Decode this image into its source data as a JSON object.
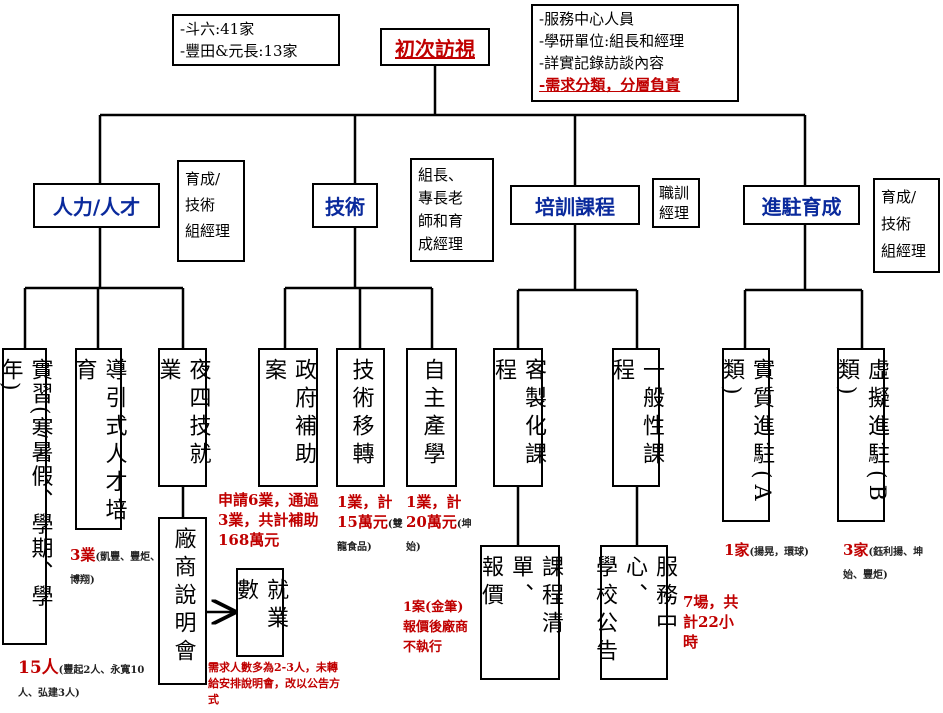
{
  "root": {
    "label": "初次訪視"
  },
  "notes": {
    "sites": [
      "-斗六:41家",
      "-豐田&元長:13家"
    ],
    "principles": [
      "-服務中心人員",
      "-學研單位:組長和經理",
      "-詳實記錄訪談內容",
      "-需求分類，分層負責"
    ]
  },
  "branches": [
    {
      "label": "人力/人才",
      "owner": [
        "育成/",
        "技術",
        "組經理"
      ]
    },
    {
      "label": "技術",
      "owner": [
        "組長、",
        "專長老",
        "師和育",
        "成經理"
      ]
    },
    {
      "label": "培訓課程",
      "owner": [
        "職訓",
        "經理"
      ]
    },
    {
      "label": "進駐育成",
      "owner": [
        "育成/",
        "技術",
        "組經理"
      ]
    }
  ],
  "items": [
    {
      "label": "實習(寒暑假、學期、學年)"
    },
    {
      "label": "導引式人才培育"
    },
    {
      "label": "夜四技就業"
    },
    {
      "label": "政府補助案"
    },
    {
      "label": "技術移轉"
    },
    {
      "label": "自主產學"
    },
    {
      "label": "客製化課程"
    },
    {
      "label": "一般性課程"
    },
    {
      "label": "實質進駐(A類)"
    },
    {
      "label": "虛擬進駐(B類)"
    }
  ],
  "followups": [
    {
      "lines": [
        "廠商說明會"
      ]
    },
    {
      "lines": [
        "就業數"
      ]
    },
    {
      "lines": [
        "課程清單、",
        "報價"
      ]
    },
    {
      "lines": [
        "服務中心、",
        "學校公告"
      ]
    }
  ],
  "results": [
    {
      "main": "15人",
      "detail": "(豐起2人、永寬10人、弘建3人)"
    },
    {
      "main": "3業",
      "detail": "(凱豐、豐炬、博翔)"
    },
    {
      "main": "申請6業，通過3業，共計補助168萬元"
    },
    {
      "main": "1業，計15萬元",
      "detail": "(雙龍食品)"
    },
    {
      "main": "1業，計20萬元",
      "detail": "(坤始)"
    },
    {
      "main": "1案(金筆)報價後廠商不執行"
    },
    {
      "main": "7場，共計22小時"
    },
    {
      "main": "1家",
      "detail": "(揚晃，環球)"
    },
    {
      "main": "3家",
      "detail": "(鈺利揚、坤始、豐炬)"
    },
    {
      "main": "需求人數多為2-3人，未轉給安排說明會，改以公告方式"
    }
  ]
}
